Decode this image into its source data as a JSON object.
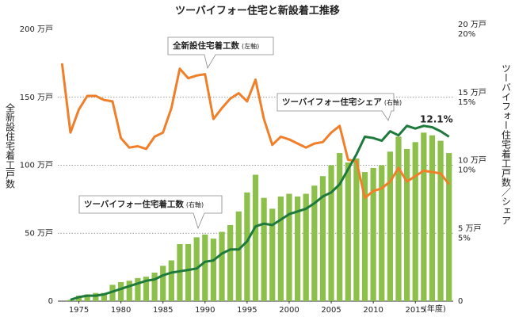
{
  "chart_data": {
    "type": "combo",
    "title": "ツーバイフォー住宅と新設着工推移",
    "ylabel": "全新設住宅着工戸数",
    "y2label": "ツーバイフォー住宅着工戸数／シェア",
    "xlabel": "(年度)",
    "annotations": [
      {
        "text": "12.1%"
      }
    ],
    "x": [
      1973,
      1974,
      1975,
      1976,
      1977,
      1978,
      1979,
      1980,
      1981,
      1982,
      1983,
      1984,
      1985,
      1986,
      1987,
      1988,
      1989,
      1990,
      1991,
      1992,
      1993,
      1994,
      1995,
      1996,
      1997,
      1998,
      1999,
      2000,
      2001,
      2002,
      2003,
      2004,
      2005,
      2006,
      2007,
      2008,
      2009,
      2010,
      2011,
      2012,
      2013,
      2014,
      2015,
      2016,
      2017,
      2018,
      2019
    ],
    "xlim": [
      1972.5,
      2019.5
    ],
    "xticks": [
      1975,
      1980,
      1985,
      1990,
      1995,
      2000,
      2005,
      2010,
      2015
    ],
    "ylim": [
      0,
      200
    ],
    "yticks": [
      0,
      {
        "value": 50,
        "label": "50 万戸"
      },
      {
        "value": 100,
        "label": "100 万戸"
      },
      {
        "value": 150,
        "label": "150 万戸"
      },
      {
        "value": 200,
        "label": "200 万戸"
      }
    ],
    "y2lim": [
      0,
      20
    ],
    "y2ticks": [
      0,
      {
        "value": 5,
        "label": "5 万戸"
      },
      {
        "value": 10,
        "label": "10 万戸"
      },
      {
        "value": 15,
        "label": "15 万戸"
      },
      {
        "value": 20,
        "label": "20 万戸"
      }
    ],
    "share_ticks": [
      {
        "value": 5,
        "label": "5%"
      },
      {
        "value": 10,
        "label": "10%"
      },
      {
        "value": 15,
        "label": "15%"
      },
      {
        "value": 20,
        "label": "20%"
      }
    ],
    "grid": true,
    "series": [
      {
        "name": "ツーバイフォー住宅着工数",
        "note": "(右軸)",
        "type": "bar",
        "axis": "y2",
        "color": "#8dc04a",
        "values": [
          null,
          0.1,
          0.4,
          0.5,
          0.6,
          0.6,
          1.2,
          1.4,
          1.5,
          1.7,
          1.8,
          2.1,
          2.6,
          3.0,
          4.2,
          4.2,
          4.7,
          4.9,
          4.6,
          5.1,
          5.6,
          6.6,
          8.0,
          9.3,
          7.6,
          6.8,
          7.7,
          7.9,
          7.7,
          7.9,
          8.5,
          9.2,
          10.0,
          10.9,
          10.2,
          10.5,
          9.5,
          9.8,
          10.0,
          11.0,
          12.1,
          11.2,
          11.7,
          12.4,
          12.2,
          11.8,
          10.9
        ]
      },
      {
        "name": "全新設住宅着工数",
        "note": "(左軸)",
        "type": "line",
        "axis": "y",
        "color": "#f07f2a",
        "values": [
          175,
          124,
          141,
          151,
          151,
          148,
          147,
          120,
          113,
          114,
          112,
          121,
          124,
          142,
          171,
          164,
          166,
          167,
          134,
          142,
          149,
          153,
          147,
          163,
          134,
          115,
          121,
          119,
          116,
          113,
          116,
          117,
          124,
          129,
          104,
          103,
          76,
          81,
          83,
          88,
          98,
          88,
          92,
          96,
          95,
          94,
          86
        ]
      },
      {
        "name": "ツーバイフォー住宅シェア",
        "note": "(右軸)",
        "type": "line",
        "axis": "y2",
        "color": "#1e7a3c",
        "values": [
          null,
          0.1,
          0.3,
          0.4,
          0.4,
          0.5,
          0.7,
          0.9,
          1.1,
          1.3,
          1.5,
          1.6,
          1.9,
          2.1,
          2.2,
          2.3,
          2.4,
          2.9,
          3.0,
          3.5,
          3.8,
          3.8,
          4.4,
          5.5,
          5.7,
          5.6,
          6.0,
          6.4,
          6.6,
          6.8,
          7.2,
          7.7,
          8.0,
          8.6,
          9.7,
          10.8,
          12.1,
          12.0,
          11.8,
          12.5,
          12.2,
          12.9,
          12.7,
          12.9,
          12.8,
          12.5,
          12.1
        ]
      }
    ]
  }
}
